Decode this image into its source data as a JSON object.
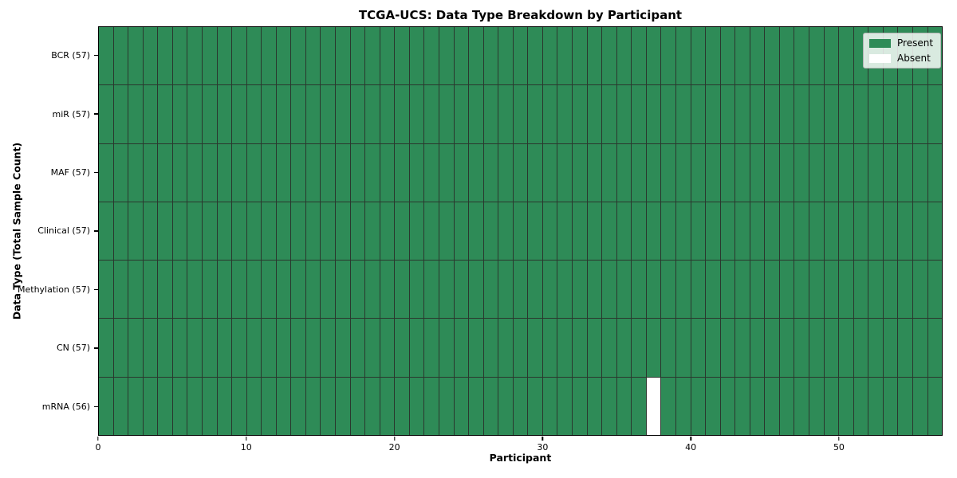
{
  "chart_data": {
    "type": "heatmap",
    "title": "TCGA-UCS: Data Type Breakdown by Participant",
    "xlabel": "Participant",
    "ylabel": "Data Type (Total Sample Count)",
    "n_participants": 57,
    "xlim": [
      0,
      57
    ],
    "x_ticks": [
      0,
      10,
      20,
      30,
      40,
      50
    ],
    "rows": [
      {
        "label": "BCR (57)",
        "data_type": "BCR",
        "present_count": 57,
        "absent_participants": []
      },
      {
        "label": "miR (57)",
        "data_type": "miR",
        "present_count": 57,
        "absent_participants": []
      },
      {
        "label": "MAF (57)",
        "data_type": "MAF",
        "present_count": 57,
        "absent_participants": []
      },
      {
        "label": "Clinical (57)",
        "data_type": "Clinical",
        "present_count": 57,
        "absent_participants": []
      },
      {
        "label": "Methylation (57)",
        "data_type": "Methylation",
        "present_count": 57,
        "absent_participants": []
      },
      {
        "label": "CN (57)",
        "data_type": "CN",
        "present_count": 57,
        "absent_participants": []
      },
      {
        "label": "mRNA (56)",
        "data_type": "mRNA",
        "present_count": 56,
        "absent_participants": [
          37
        ]
      }
    ],
    "colors": {
      "present": "#2e8b57",
      "absent": "#ffffff",
      "cell_edge": "#2a372e"
    },
    "legend": {
      "position": "upper right",
      "entries": [
        {
          "label": "Present",
          "color": "#2e8b57"
        },
        {
          "label": "Absent",
          "color": "#ffffff"
        }
      ]
    },
    "grid": "cell-borders",
    "legend_position": "upper right"
  }
}
